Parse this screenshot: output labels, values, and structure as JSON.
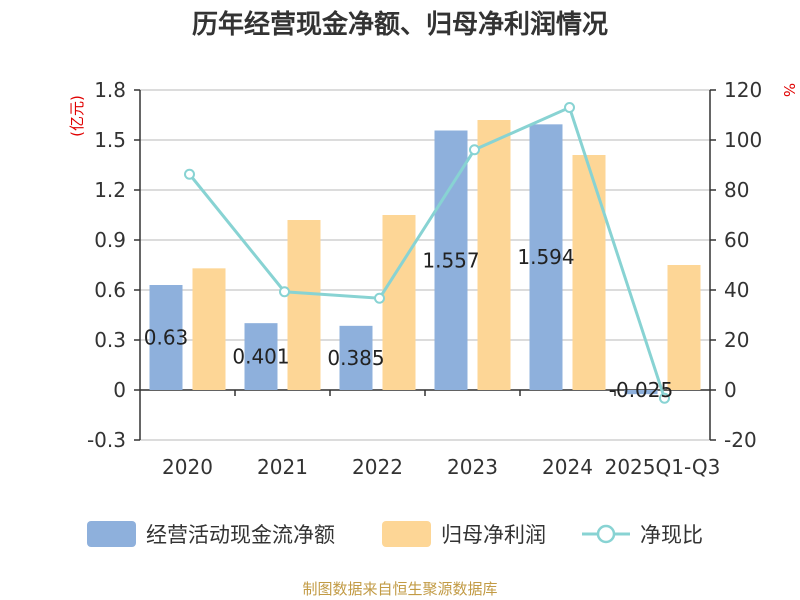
{
  "title": "历年经营现金净额、归母净利润情况",
  "source": "制图数据来自恒生聚源数据库",
  "colors": {
    "cash_flow": "#8eb0dc",
    "net_profit": "#fdd696",
    "ratio": "#88d3d3",
    "grid": "#c8c8c8",
    "axis": "#333333",
    "unit": "#e00000",
    "source": "#c29b45"
  },
  "chart_data": {
    "type": "bar",
    "title": "历年经营现金净额、归母净利润情况",
    "categories": [
      "2020",
      "2021",
      "2022",
      "2023",
      "2024",
      "2025Q1-Q3"
    ],
    "series": [
      {
        "name": "经营活动现金流净额",
        "type": "bar",
        "axis": "left",
        "values": [
          0.63,
          0.401,
          0.385,
          1.557,
          1.594,
          -0.025
        ],
        "labels": [
          "0.63",
          "0.401",
          "0.385",
          "1.557",
          "1.594",
          "-0.025"
        ]
      },
      {
        "name": "归母净利润",
        "type": "bar",
        "axis": "left",
        "values": [
          0.73,
          1.02,
          1.05,
          1.62,
          1.41,
          0.75
        ]
      },
      {
        "name": "净现比",
        "type": "line",
        "axis": "right",
        "values": [
          86.3,
          39.3,
          36.7,
          96.1,
          113.0,
          -3.3
        ]
      }
    ],
    "left_axis": {
      "label": "(亿元)",
      "min": -0.3,
      "max": 1.8,
      "ticks": [
        "-0.3",
        "0",
        "0.3",
        "0.6",
        "0.9",
        "1.2",
        "1.5",
        "1.8"
      ]
    },
    "right_axis": {
      "label": "%",
      "min": -20,
      "max": 120,
      "ticks": [
        "-20",
        "0",
        "20",
        "40",
        "60",
        "80",
        "100",
        "120"
      ]
    },
    "grid": true,
    "legend": "bottom"
  }
}
